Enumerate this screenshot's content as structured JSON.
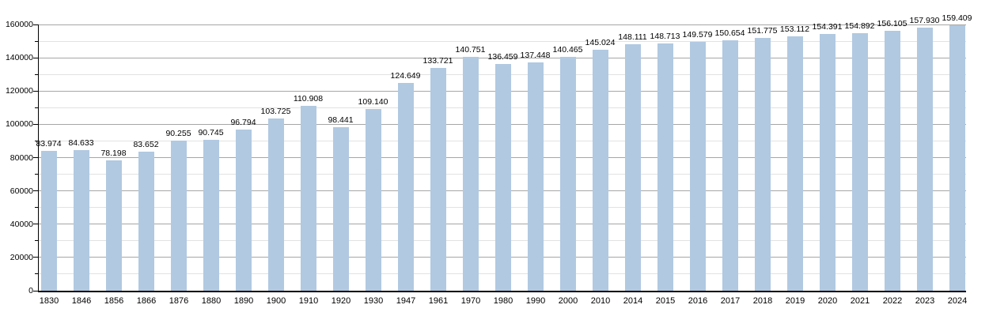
{
  "chart_data": {
    "type": "bar",
    "title": "",
    "xlabel": "",
    "ylabel": "",
    "categories": [
      "1830",
      "1846",
      "1856",
      "1866",
      "1876",
      "1880",
      "1890",
      "1900",
      "1910",
      "1920",
      "1930",
      "1947",
      "1961",
      "1970",
      "1980",
      "1990",
      "2000",
      "2010",
      "2014",
      "2015",
      "2016",
      "2017",
      "2018",
      "2019",
      "2020",
      "2021",
      "2022",
      "2023",
      "2024"
    ],
    "values": [
      83974,
      84633,
      78198,
      83652,
      90255,
      90745,
      96794,
      103725,
      110908,
      98441,
      109140,
      124649,
      133721,
      140751,
      136459,
      137448,
      140465,
      145024,
      148111,
      148713,
      149579,
      150654,
      151775,
      153112,
      154391,
      154892,
      156105,
      157930,
      159409
    ],
    "bar_labels": [
      "83.974",
      "84.633",
      "78.198",
      "83.652",
      "90.255",
      "90.745",
      "96.794",
      "103.725",
      "110.908",
      "98.441",
      "109.140",
      "124.649",
      "133.721",
      "140.751",
      "136.459",
      "137.448",
      "140.465",
      "145.024",
      "148.111",
      "148.713",
      "149.579",
      "150.654",
      "151.775",
      "153.112",
      "154.391",
      "154.892",
      "156.105",
      "157.930",
      "159.409"
    ],
    "ylim": [
      0,
      160000
    ],
    "y_major_step": 20000,
    "y_minor_step": 10000,
    "y_tick_labels": [
      "0",
      "20000",
      "40000",
      "60000",
      "80000",
      "100000",
      "120000",
      "140000",
      "160000"
    ],
    "grid": true,
    "legend": "none",
    "colors": {
      "bar_fill": "#b1c9e1",
      "grid_major": "#a6a6a6",
      "grid_minor": "#e2e2e2",
      "axis": "#000000",
      "text": "#000000",
      "background": "#ffffff"
    }
  }
}
